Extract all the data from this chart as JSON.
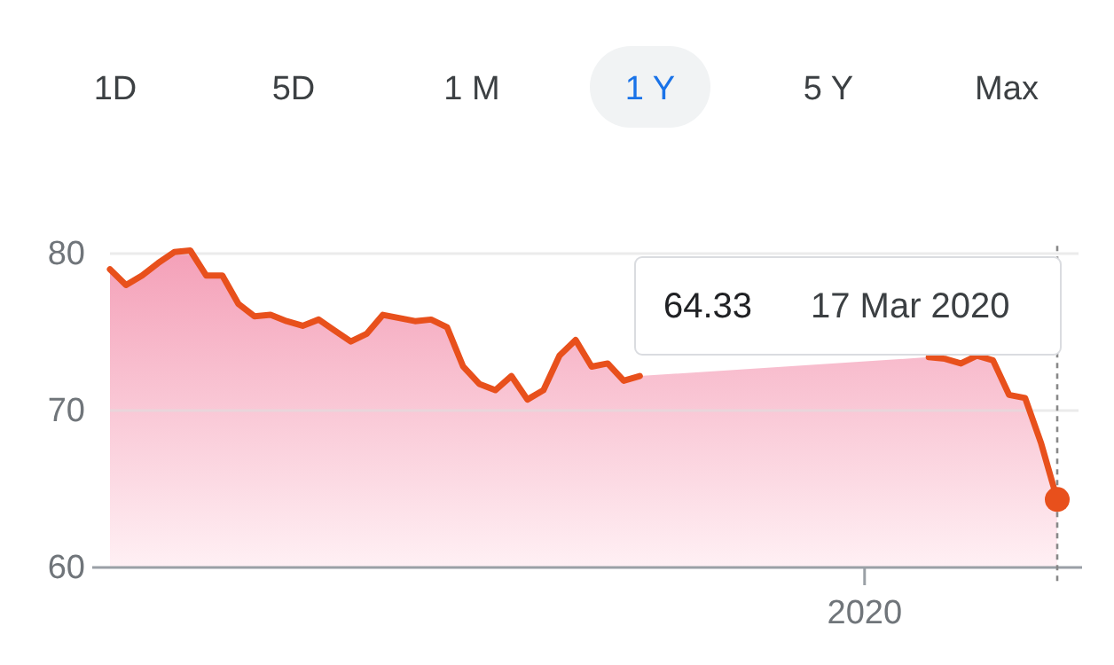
{
  "chart_data": {
    "type": "area",
    "legend": false,
    "grid": "y",
    "marker": "none",
    "line_style": "solid",
    "categories": [
      null,
      null,
      null,
      null,
      null,
      null,
      null,
      null,
      null,
      null,
      null,
      null,
      null,
      null,
      null,
      null,
      null,
      null,
      null,
      null,
      null,
      null,
      null,
      null,
      null,
      null,
      null,
      null,
      null,
      null,
      null,
      null,
      null,
      null,
      null,
      null,
      null,
      null,
      null,
      null,
      null,
      null,
      null,
      null,
      null,
      null,
      null,
      "2020",
      null,
      null,
      null,
      null,
      null,
      null,
      null,
      null,
      null,
      null,
      null,
      null
    ],
    "series": [
      {
        "color": "#e8501c",
        "values": [
          79.0,
          78.0,
          78.6,
          79.4,
          80.1,
          80.2,
          78.6,
          78.6,
          76.8,
          76.0,
          76.1,
          75.7,
          75.4,
          75.8,
          75.1,
          74.4,
          74.9,
          76.1,
          75.9,
          75.7,
          75.8,
          75.3,
          72.8,
          71.7,
          71.3,
          72.2,
          70.7,
          71.3,
          73.5,
          74.5,
          72.8,
          73.0,
          71.9,
          72.2,
          null,
          null,
          null,
          null,
          null,
          null,
          null,
          null,
          null,
          null,
          null,
          null,
          null,
          null,
          null,
          null,
          null,
          73.4,
          73.3,
          73.0,
          73.5,
          73.2,
          71.0,
          70.8,
          67.9,
          64.33
        ]
      }
    ],
    "ylim": [
      60,
      80.5
    ],
    "yticks": [
      60,
      70,
      80
    ],
    "annotations": [
      "1D",
      "5D",
      "1 M",
      "1 Y",
      "5 Y",
      "Max",
      "64.33",
      "17 Mar 2020"
    ]
  }
}
